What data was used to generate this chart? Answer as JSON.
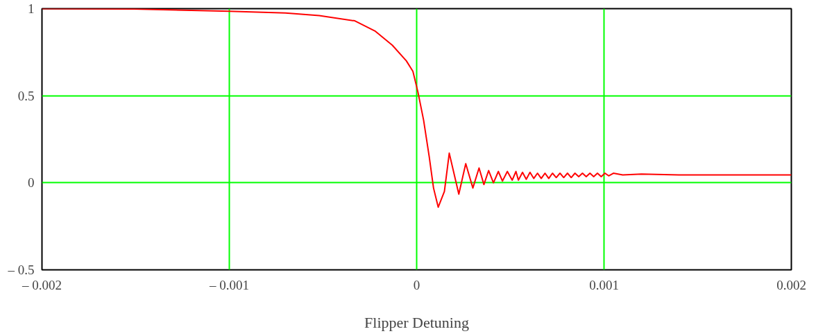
{
  "chart_data": {
    "type": "line",
    "xlabel": "Flipper Detuning",
    "xlim": [
      -0.002,
      0.002
    ],
    "ylim": [
      -0.5,
      1
    ],
    "xticks": [
      {
        "value": -0.002,
        "label": "– 0.002"
      },
      {
        "value": -0.001,
        "label": "– 0.001"
      },
      0,
      0.001,
      0.002
    ],
    "yticks": [
      {
        "value": -0.5,
        "label": "– 0.5"
      },
      0,
      0.5,
      1
    ],
    "grid": true,
    "series": [
      {
        "color": "#ff0000",
        "x": [
          -0.002,
          -0.00151,
          -0.001,
          -0.0007,
          -0.00052,
          -0.00033,
          -0.00022,
          -0.00013,
          -5.5e-05,
          -2e-05,
          7e-06,
          3.7e-05,
          6.7e-05,
          9e-05,
          0.000115,
          0.000148,
          0.000174,
          0.0002,
          0.000225,
          0.000262,
          0.0003,
          0.000333,
          0.000359,
          0.000384,
          0.00041,
          0.000436,
          0.000458,
          0.000484,
          0.00051,
          0.00053,
          0.000543,
          0.000565,
          0.000585,
          0.000605,
          0.000625,
          0.000645,
          0.000665,
          0.000685,
          0.000705,
          0.000725,
          0.000745,
          0.000765,
          0.000785,
          0.000805,
          0.000825,
          0.000845,
          0.000865,
          0.000885,
          0.000905,
          0.000925,
          0.000945,
          0.000965,
          0.000985,
          0.001005,
          0.001025,
          0.00105,
          0.0011,
          0.0012,
          0.0014,
          0.0016,
          0.0018,
          0.002
        ],
        "values": [
          1.0,
          0.998,
          0.985,
          0.975,
          0.96,
          0.93,
          0.87,
          0.79,
          0.7,
          0.64,
          0.52,
          0.36,
          0.15,
          -0.03,
          -0.14,
          -0.05,
          0.17,
          0.05,
          -0.065,
          0.11,
          -0.03,
          0.085,
          -0.01,
          0.07,
          0.0,
          0.065,
          0.01,
          0.065,
          0.015,
          0.065,
          0.015,
          0.06,
          0.02,
          0.06,
          0.025,
          0.055,
          0.025,
          0.055,
          0.025,
          0.055,
          0.03,
          0.055,
          0.03,
          0.055,
          0.03,
          0.055,
          0.035,
          0.055,
          0.035,
          0.055,
          0.035,
          0.055,
          0.035,
          0.055,
          0.04,
          0.055,
          0.045,
          0.05,
          0.045,
          0.045,
          0.045,
          0.045
        ]
      }
    ]
  }
}
